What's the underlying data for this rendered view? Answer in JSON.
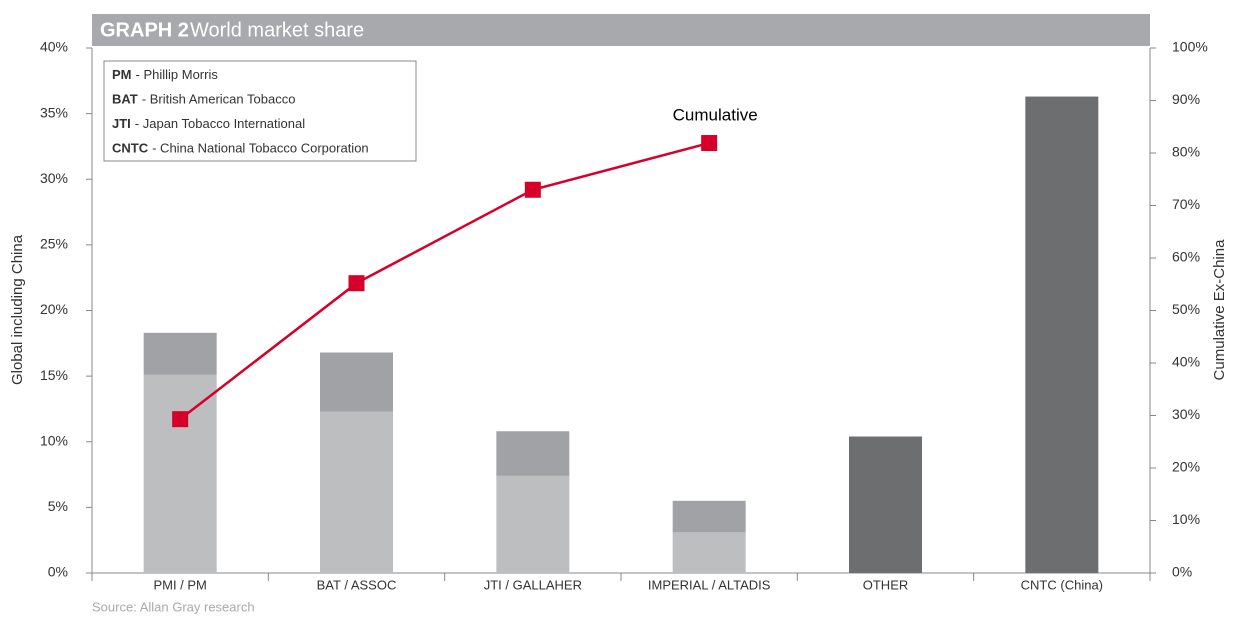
{
  "chart_data": {
    "type": "bar",
    "label": "GRAPH 2",
    "title": "World market share",
    "ylabel": "Global including China",
    "y2label": "Cumulative Ex-China",
    "source": "Source: Allan Gray research",
    "notes": [
      {
        "abbr": "PM",
        "text": "- Phillip Morris"
      },
      {
        "abbr": "BAT",
        "text": "- British American Tobacco"
      },
      {
        "abbr": "JTI",
        "text": "- Japan Tobacco International"
      },
      {
        "abbr": "CNTC",
        "text": "- China National Tobacco Corporation"
      }
    ],
    "categories": [
      "PMI / PM",
      "BAT / ASSOC",
      "JTI / GALLAHER",
      "IMPERIAL / ALTADIS",
      "OTHER",
      "CNTC (China)"
    ],
    "series": [
      {
        "color": "#bcbec0",
        "values": [
          15.1,
          12.3,
          7.4,
          3.1,
          null,
          null
        ]
      },
      {
        "color": "#a0a2a5",
        "values": [
          3.2,
          4.5,
          3.4,
          2.4,
          null,
          null
        ]
      },
      {
        "color": "#6d6e70",
        "values": [
          null,
          null,
          null,
          null,
          10.4,
          36.3
        ]
      },
      {
        "name": "Cumulative",
        "type": "line",
        "axis": "y2",
        "color": "#d6002a",
        "values": [
          29.3,
          55.2,
          73,
          81.9,
          null,
          null
        ]
      }
    ],
    "ylim": [
      0,
      40
    ],
    "yticks": [
      {
        "value": 0,
        "label": "0%"
      },
      {
        "value": 5,
        "label": "5%"
      },
      {
        "value": 10,
        "label": "10%"
      },
      {
        "value": 15,
        "label": "15%"
      },
      {
        "value": 20,
        "label": "20%"
      },
      {
        "value": 25,
        "label": "25%"
      },
      {
        "value": 30,
        "label": "30%"
      },
      {
        "value": 35,
        "label": "35%"
      },
      {
        "value": 40,
        "label": "40%"
      }
    ],
    "y2lim": [
      0,
      100
    ],
    "y2ticks": [
      {
        "value": 0,
        "label": "0%"
      },
      {
        "value": 10,
        "label": "10%"
      },
      {
        "value": 20,
        "label": "20%"
      },
      {
        "value": 30,
        "label": "30%"
      },
      {
        "value": 40,
        "label": "40%"
      },
      {
        "value": 50,
        "label": "50%"
      },
      {
        "value": 60,
        "label": "60%"
      },
      {
        "value": 70,
        "label": "70%"
      },
      {
        "value": 80,
        "label": "80%"
      },
      {
        "value": 90,
        "label": "90%"
      },
      {
        "value": 100,
        "label": "100%"
      }
    ]
  }
}
